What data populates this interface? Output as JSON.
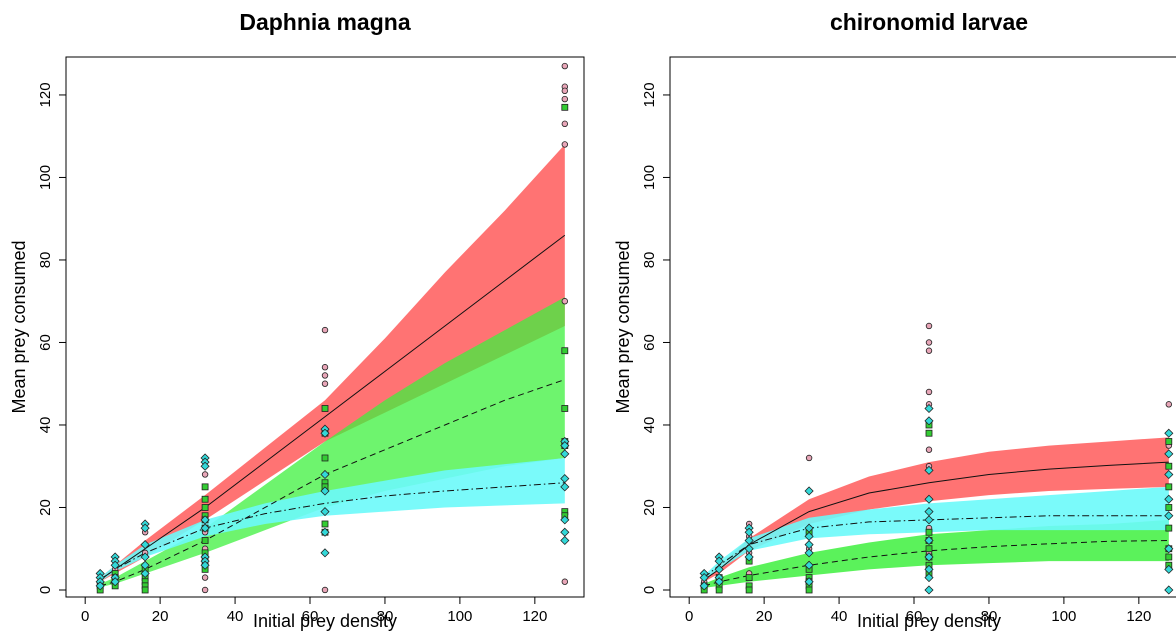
{
  "chart_data": [
    {
      "type": "line",
      "title": "Daphnia magna",
      "xlabel": "Initial prey density",
      "ylabel": "Mean prey consumed",
      "xlim": [
        -5.12,
        133.12
      ],
      "ylim": [
        -1.7,
        129.2
      ],
      "xticks": [
        0,
        20,
        40,
        60,
        80,
        100,
        120
      ],
      "yticks": [
        0,
        20,
        40,
        60,
        80,
        100,
        120
      ],
      "series": [
        {
          "color": "#ff6b6b",
          "band_opacity": 0.95,
          "dash": "solid",
          "x": [
            4,
            8,
            16,
            32,
            48,
            64,
            80,
            96,
            112,
            128
          ],
          "values": [
            2.5,
            5,
            10,
            20,
            31,
            42,
            53,
            64,
            75,
            86
          ],
          "lower": [
            2,
            4,
            8,
            17,
            26.5,
            36,
            43,
            50,
            57,
            64
          ],
          "upper": [
            3,
            6,
            12,
            23,
            34.5,
            46,
            61,
            77,
            92,
            108
          ]
        },
        {
          "color": "#3ef03e",
          "band_opacity": 0.75,
          "dash": "dashed",
          "x": [
            4,
            8,
            16,
            32,
            48,
            64,
            80,
            96,
            112,
            128
          ],
          "values": [
            1,
            2,
            5,
            12,
            20,
            28,
            34,
            40,
            46,
            51
          ],
          "lower": [
            0.7,
            1.5,
            4,
            9,
            14.5,
            20,
            24,
            27,
            30,
            32
          ],
          "upper": [
            1.5,
            3,
            7,
            15,
            25.5,
            36,
            46,
            55,
            63,
            71
          ]
        },
        {
          "color": "#6cfafa",
          "band_opacity": 0.9,
          "dash": "dotdash",
          "x": [
            4,
            8,
            16,
            32,
            48,
            64,
            80,
            96,
            112,
            128
          ],
          "values": [
            2.5,
            5,
            9,
            15,
            18.5,
            21,
            22.8,
            24,
            25,
            26
          ],
          "lower": [
            2,
            4.5,
            8,
            13,
            16,
            18,
            19,
            20,
            20.5,
            21
          ],
          "upper": [
            3,
            6,
            11,
            17,
            21,
            24,
            26.5,
            29,
            30.5,
            32
          ]
        }
      ],
      "points": [
        {
          "color": "#e8a6b8",
          "shape": "circle",
          "x": [
            128,
            128,
            128,
            128,
            128,
            128,
            128,
            128,
            64,
            64,
            64,
            64,
            64,
            64,
            64,
            64,
            32,
            32,
            32,
            32,
            32,
            32,
            32,
            32,
            32,
            32,
            32,
            32,
            32,
            16,
            16,
            16,
            16,
            16,
            8,
            8,
            8,
            4,
            4,
            4
          ],
          "y": [
            127,
            122,
            121,
            119,
            113,
            108,
            70,
            2,
            63,
            54,
            52,
            50,
            39,
            38,
            25,
            0,
            32,
            31,
            30,
            28,
            25,
            20,
            17,
            14,
            10,
            7,
            5,
            3,
            0,
            15,
            14,
            9,
            4,
            1,
            5,
            3,
            1,
            2,
            1,
            0
          ]
        },
        {
          "color": "#33cc33",
          "shape": "square",
          "x": [
            128,
            128,
            128,
            128,
            128,
            128,
            128,
            64,
            64,
            64,
            64,
            64,
            64,
            64,
            32,
            32,
            32,
            32,
            32,
            32,
            32,
            32,
            32,
            32,
            16,
            16,
            16,
            16,
            16,
            8,
            8,
            8,
            8,
            4,
            4
          ],
          "y": [
            117,
            58,
            44,
            36,
            35,
            19,
            18,
            44,
            38,
            32,
            26,
            25,
            16,
            14,
            25,
            22,
            20,
            18,
            17,
            15,
            12,
            9,
            7,
            5,
            5,
            3,
            2,
            1,
            0,
            4,
            3,
            2,
            1,
            1,
            0
          ]
        },
        {
          "color": "#33d8d8",
          "shape": "diamond",
          "x": [
            128,
            128,
            128,
            128,
            128,
            128,
            128,
            128,
            64,
            64,
            64,
            64,
            64,
            64,
            64,
            32,
            32,
            32,
            32,
            32,
            32,
            32,
            32,
            16,
            16,
            16,
            16,
            16,
            16,
            8,
            8,
            8,
            8,
            8,
            4,
            4,
            4,
            4
          ],
          "y": [
            36,
            35,
            33,
            27,
            25,
            17,
            14,
            12,
            39,
            38,
            28,
            24,
            19,
            14,
            9,
            32,
            31,
            30,
            17,
            15,
            8,
            7,
            6,
            16,
            15,
            11,
            8,
            6,
            4,
            8,
            7,
            6,
            3,
            2,
            4,
            3,
            2,
            1
          ]
        }
      ]
    },
    {
      "type": "line",
      "title": "chironomid larvae",
      "xlabel": "Initial prey density",
      "ylabel": "Mean prey consumed",
      "xlim": [
        -5.12,
        133.12
      ],
      "ylim": [
        -1.7,
        129.2
      ],
      "xticks": [
        0,
        20,
        40,
        60,
        80,
        100,
        120
      ],
      "yticks": [
        0,
        20,
        40,
        60,
        80,
        100,
        120
      ],
      "series": [
        {
          "color": "#ff6b6b",
          "band_opacity": 0.95,
          "dash": "solid",
          "x": [
            4,
            8,
            16,
            32,
            48,
            64,
            80,
            96,
            112,
            128
          ],
          "values": [
            2.5,
            5,
            11,
            19,
            23.5,
            26,
            28,
            29.3,
            30.2,
            31
          ],
          "lower": [
            2,
            4,
            9.5,
            16,
            19.5,
            21.5,
            23,
            24,
            24.5,
            25
          ],
          "upper": [
            3,
            6,
            12.5,
            22,
            27.5,
            31,
            33.5,
            35,
            36,
            37
          ]
        },
        {
          "color": "#3ef03e",
          "band_opacity": 0.85,
          "dash": "dashed",
          "x": [
            4,
            8,
            16,
            32,
            48,
            64,
            80,
            96,
            112,
            128
          ],
          "values": [
            1,
            2,
            3.5,
            6,
            8,
            9.5,
            10.5,
            11.2,
            11.8,
            12
          ],
          "lower": [
            0.5,
            1,
            2,
            3.5,
            5,
            6,
            6.5,
            7,
            7,
            7
          ],
          "upper": [
            1.5,
            3,
            5.5,
            9,
            11.5,
            13.5,
            14.5,
            15.5,
            16,
            17
          ]
        },
        {
          "color": "#6cfafa",
          "band_opacity": 0.9,
          "dash": "dotdash",
          "x": [
            4,
            8,
            16,
            32,
            48,
            64,
            80,
            96,
            112,
            128
          ],
          "values": [
            3,
            6,
            11,
            15,
            16.5,
            17,
            17.5,
            18,
            18,
            18
          ],
          "lower": [
            2.5,
            5,
            9.5,
            12.5,
            13.5,
            14,
            14.5,
            14.5,
            14.5,
            14.5
          ],
          "upper": [
            3.5,
            7,
            12.5,
            17.5,
            19.5,
            21,
            22,
            23,
            24,
            25
          ]
        }
      ],
      "points": [
        {
          "color": "#e8a6b8",
          "shape": "circle",
          "x": [
            128,
            128,
            128,
            128,
            128,
            128,
            64,
            64,
            64,
            64,
            64,
            64,
            64,
            64,
            64,
            64,
            64,
            64,
            64,
            64,
            32,
            32,
            32,
            32,
            32,
            32,
            16,
            16,
            16,
            16,
            8,
            8,
            8,
            4,
            4
          ],
          "y": [
            45,
            35,
            30,
            25,
            20,
            15,
            64,
            60,
            58,
            48,
            45,
            38,
            34,
            30,
            22,
            15,
            12,
            9,
            6,
            4,
            32,
            15,
            14,
            10,
            5,
            3,
            16,
            13,
            9,
            4,
            8,
            5,
            3,
            4,
            2
          ]
        },
        {
          "color": "#33cc33",
          "shape": "square",
          "x": [
            128,
            128,
            128,
            128,
            128,
            128,
            128,
            128,
            64,
            64,
            64,
            64,
            64,
            64,
            64,
            64,
            32,
            32,
            32,
            32,
            32,
            32,
            16,
            16,
            16,
            16,
            8,
            8,
            8,
            4,
            4
          ],
          "y": [
            36,
            30,
            25,
            20,
            15,
            10,
            8,
            6,
            40,
            38,
            14,
            12,
            10,
            8,
            6,
            4,
            14,
            5,
            3,
            2,
            1,
            0,
            7,
            3,
            1,
            0,
            3,
            1,
            0,
            1,
            0
          ]
        },
        {
          "color": "#33d8d8",
          "shape": "diamond",
          "x": [
            128,
            128,
            128,
            128,
            128,
            128,
            128,
            128,
            64,
            64,
            64,
            64,
            64,
            64,
            64,
            64,
            64,
            64,
            64,
            32,
            32,
            32,
            32,
            32,
            32,
            32,
            16,
            16,
            16,
            16,
            16,
            8,
            8,
            8,
            8,
            8,
            4,
            4,
            4
          ],
          "y": [
            38,
            33,
            28,
            22,
            18,
            10,
            5,
            0,
            44,
            41,
            29,
            22,
            19,
            17,
            12,
            8,
            5,
            3,
            0,
            24,
            15,
            13,
            11,
            9,
            6,
            2,
            15,
            14,
            12,
            10,
            8,
            8,
            7,
            5,
            3,
            2,
            4,
            3,
            1
          ]
        }
      ]
    }
  ]
}
